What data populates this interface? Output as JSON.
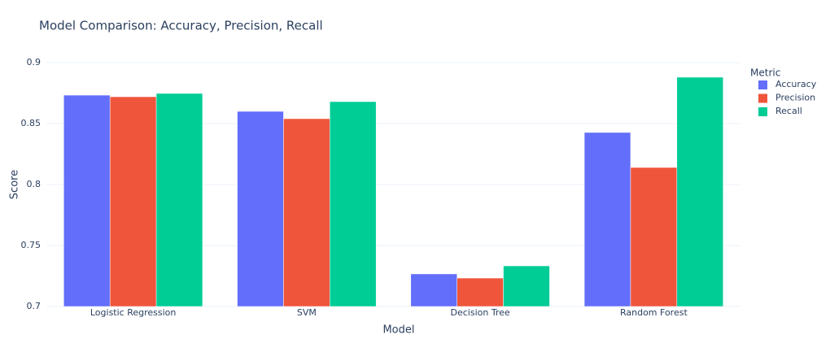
{
  "chart_data": {
    "type": "bar",
    "title": "Model Comparison: Accuracy, Precision, Recall",
    "x_label": "Model",
    "y_label": "Score",
    "legend_title": "Metric",
    "categories": [
      "Logistic Regression",
      "SVM",
      "Decision Tree",
      "Random Forest"
    ],
    "series": [
      {
        "name": "Accuracy",
        "color": "#636efa",
        "values": [
          0.8733,
          0.86,
          0.7267,
          0.8427
        ]
      },
      {
        "name": "Precision",
        "color": "#ef553b",
        "values": [
          0.872,
          0.854,
          0.7233,
          0.814
        ]
      },
      {
        "name": "Recall",
        "color": "#00cc96",
        "values": [
          0.8747,
          0.868,
          0.7333,
          0.888
        ]
      }
    ],
    "ylim": [
      0.7,
      0.9
    ],
    "yticks": [
      0.7,
      0.75,
      0.8,
      0.85,
      0.9
    ],
    "grid": true,
    "legend_position": "right"
  }
}
